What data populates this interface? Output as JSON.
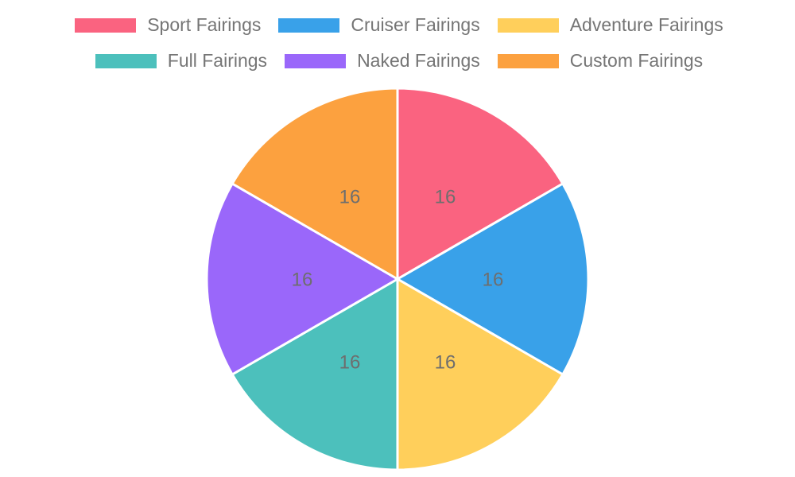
{
  "page": {
    "background_color": "#ffffff"
  },
  "legend": {
    "position": "top",
    "text_color": "#757575",
    "items": [
      {
        "label": "Sport Fairings",
        "color": "#FA6380"
      },
      {
        "label": "Cruiser Fairings",
        "color": "#39A1E9"
      },
      {
        "label": "Adventure Fairings",
        "color": "#FFCF5B"
      },
      {
        "label": "Full Fairings",
        "color": "#4CC0BC"
      },
      {
        "label": "Naked Fairings",
        "color": "#9A67FA"
      },
      {
        "label": "Custom Fairings",
        "color": "#FCA13F"
      }
    ]
  },
  "chart_data": {
    "type": "pie",
    "title": "",
    "categories": [
      "Sport Fairings",
      "Cruiser Fairings",
      "Adventure Fairings",
      "Full Fairings",
      "Naked Fairings",
      "Custom Fairings"
    ],
    "values": [
      16,
      16,
      16,
      16,
      16,
      16
    ],
    "slice_labels": [
      "16",
      "16",
      "16",
      "16",
      "16",
      "16"
    ],
    "colors": [
      "#FA6380",
      "#39A1E9",
      "#FFCF5B",
      "#4CC0BC",
      "#9A67FA",
      "#FCA13F"
    ],
    "start_angle_deg": 90,
    "direction": "clockwise",
    "slice_label_color": "#6E6E6E",
    "slice_border_color": "#FFFFFF",
    "legend_position": "top",
    "grid": false
  }
}
